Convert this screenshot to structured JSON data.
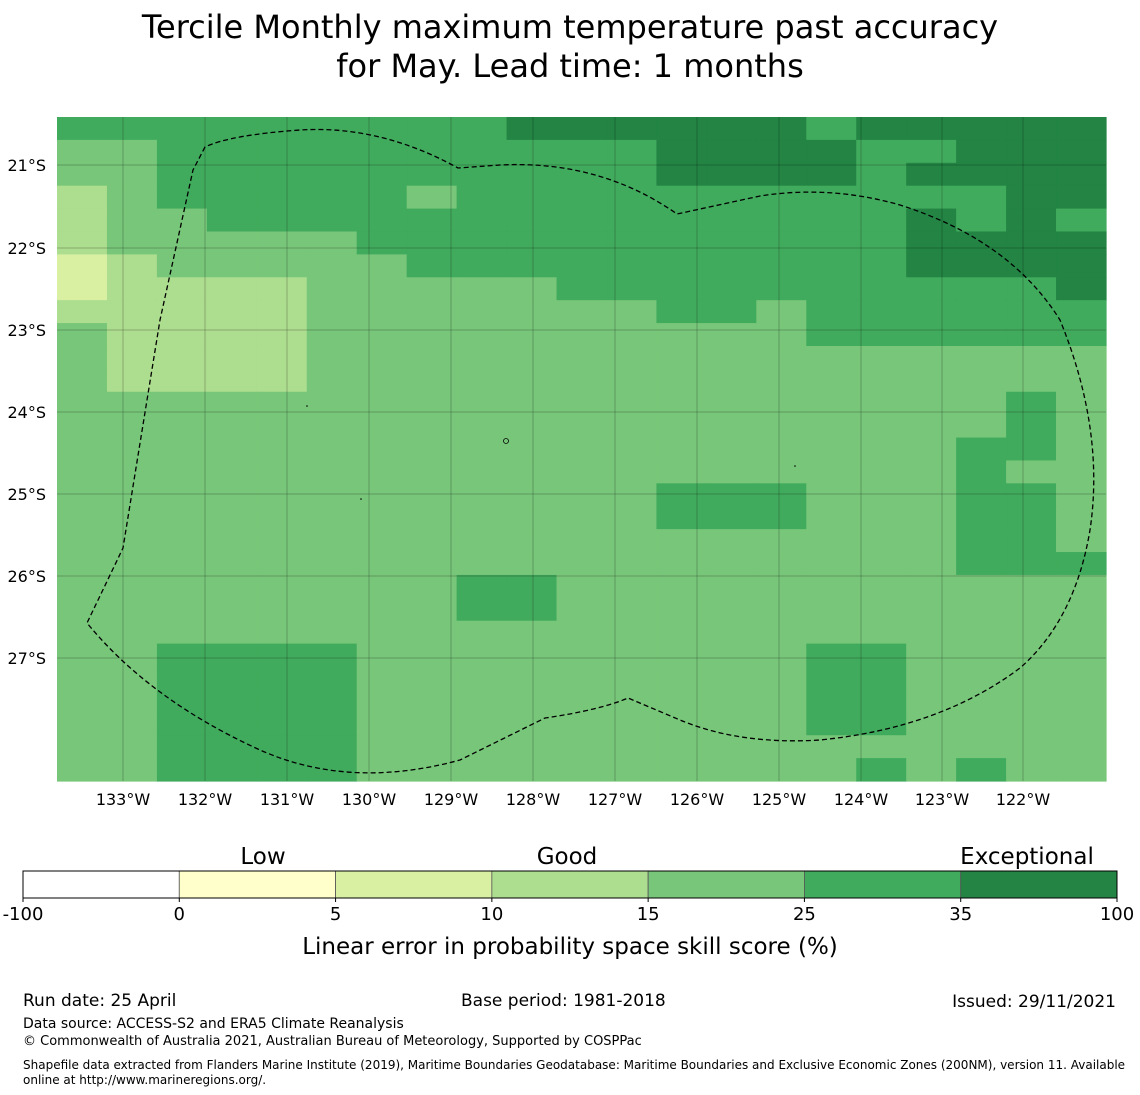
{
  "title_line1": "Tercile Monthly maximum temperature past accuracy",
  "title_line2": "for May. Lead time: 1 months",
  "lon_labels": [
    "133°W",
    "132°W",
    "131°W",
    "130°W",
    "129°W",
    "128°W",
    "127°W",
    "126°W",
    "125°W",
    "124°W",
    "123°W",
    "122°W"
  ],
  "lat_labels": [
    "21°S",
    "22°S",
    "23°S",
    "24°S",
    "25°S",
    "26°S",
    "27°S"
  ],
  "legend": {
    "categories": [
      "Low",
      "Good",
      "Exceptional"
    ],
    "bins": [
      {
        "from": -100,
        "to": 0,
        "color": "#ffffff"
      },
      {
        "from": 0,
        "to": 5,
        "color": "#ffffcc"
      },
      {
        "from": 5,
        "to": 10,
        "color": "#d9f0a3"
      },
      {
        "from": 10,
        "to": 15,
        "color": "#addd8e"
      },
      {
        "from": 15,
        "to": 25,
        "color": "#78c679"
      },
      {
        "from": 25,
        "to": 35,
        "color": "#41ab5d"
      },
      {
        "from": 35,
        "to": 100,
        "color": "#238443"
      }
    ],
    "tick_labels": [
      "-100",
      "0",
      "5",
      "10",
      "15",
      "25",
      "35",
      "100"
    ],
    "axis_label": "Linear error in probability space skill score (%)"
  },
  "grid_key": {
    "0": "#ffffcc",
    "1": "#d9f0a3",
    "2": "#addd8e",
    "3": "#78c679",
    "4": "#41ab5d",
    "5": "#238443"
  },
  "skill_grid": [
    "444444444555555455555",
    "334444444444555544555",
    "334444444444555545555",
    "234444434444444444455",
    "233444444444444445454",
    "233333444444444445555",
    "123333344444444445555",
    "122223333344444444445",
    "222223333333443444444",
    "322223333333333444444",
    "322223333333333333333",
    "322223333333333333333",
    "333333333333333333343",
    "333333333333333333343",
    "333333333333333333443",
    "333333333333333333433",
    "333333333333444333443",
    "333333333333444333443",
    "333333333333333333443",
    "333333333333333333444",
    "333333334433333333333",
    "333333334433333333333",
    "333333333333333333333",
    "334444333333333443333",
    "334444333333333443333",
    "334444333333333443333",
    "334444333333333443333",
    "334444333333333333333",
    "334444333333333343433"
  ],
  "footer": {
    "run_date": "Run date: 25 April",
    "base_period": "Base period: 1981-2018",
    "issued": "Issued: 29/11/2021",
    "data_source": "Data source: ACCESS-S2 and ERA5 Climate Reanalysis",
    "copyright": "© Commonwealth of Australia 2021, Australian Bureau of Meteorology, Supported by COSPPac",
    "shapefile_line1": "Shapefile data extracted from Flanders Marine Institute (2019), Maritime Boundaries Geodatabase: Maritime Boundaries and Exclusive Economic Zones (200NM), version 11. Available",
    "shapefile_line2": "online at http://www.marineregions.org/."
  }
}
